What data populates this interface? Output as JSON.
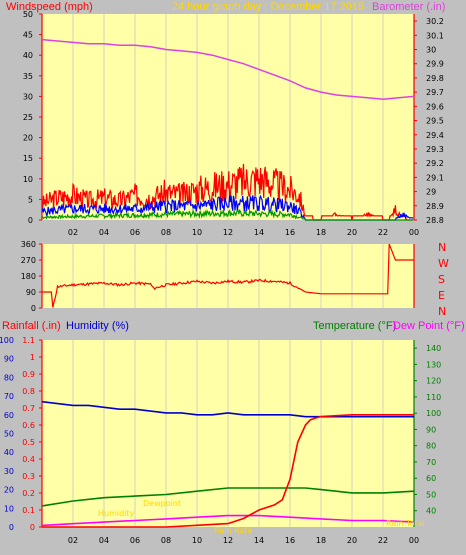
{
  "header": {
    "windspeed_label": "Windspeed (mph)",
    "title": "24 hour graph day : December 17 2015",
    "barometer_label": "Barometer (.in)"
  },
  "lower_header": {
    "rainfall_label": "Rainfall (.in)",
    "humidity_label": "Humidity (%)",
    "temperature_label": "Temperature (°F)",
    "dewpoint_label": "Dew Point (°F)"
  },
  "colors": {
    "background": "#c0c0c0",
    "panel": "#ffffa8",
    "grid": "#c8c8c8",
    "wind": "#ff0000",
    "gust_blue": "#0000ff",
    "gust_green": "#009900",
    "barometer": "#e040e0",
    "direction": "#ff0000",
    "humidity": "#0000cc",
    "temperature": "#008000",
    "dewpoint": "#ff00ff",
    "rain": "#ff0000",
    "title": "#ffd800"
  },
  "chart_data": [
    {
      "type": "line",
      "name": "wind-barometer",
      "x_ticks": [
        "02",
        "04",
        "06",
        "08",
        "10",
        "12",
        "14",
        "16",
        "18",
        "20",
        "22",
        "00"
      ],
      "y_left_ticks": [
        0,
        5,
        10,
        15,
        20,
        25,
        30,
        35,
        40,
        45,
        50
      ],
      "y_left_range": [
        0,
        50
      ],
      "y_right_ticks": [
        "28.8",
        "28.9",
        "29",
        "29.1",
        "29.2",
        "29.3",
        "29.4",
        "29.5",
        "29.6",
        "29.7",
        "29.8",
        "29.9",
        "30",
        "30.1",
        "30.2"
      ],
      "y_right_range": [
        28.8,
        30.25
      ],
      "barometer": {
        "x": [
          0,
          1,
          2,
          3,
          4,
          5,
          6,
          7,
          8,
          9,
          10,
          11,
          12,
          13,
          14,
          15,
          16,
          17,
          18,
          19,
          20,
          21,
          22,
          23,
          24
        ],
        "y": [
          30.07,
          30.06,
          30.05,
          30.04,
          30.04,
          30.03,
          30.03,
          30.02,
          30.0,
          29.99,
          29.98,
          29.96,
          29.93,
          29.9,
          29.86,
          29.82,
          29.78,
          29.73,
          29.7,
          29.68,
          29.67,
          29.66,
          29.65,
          29.66,
          29.67
        ]
      },
      "wind_red_envelope": {
        "x": [
          0,
          1,
          2,
          3,
          4,
          5,
          6,
          7,
          8,
          9,
          10,
          11,
          12,
          13,
          14,
          15,
          16,
          16.6,
          17,
          17.5,
          18,
          19,
          20,
          21,
          22,
          22.4,
          22.8,
          23,
          23.5,
          24
        ],
        "y": [
          6,
          8,
          9,
          7,
          8,
          7,
          9,
          8,
          10,
          9,
          11,
          12,
          13,
          14,
          15,
          13,
          11,
          9,
          1,
          0,
          0,
          2,
          0,
          2,
          0,
          0,
          4,
          2,
          0,
          0
        ]
      },
      "wind_blue_envelope": {
        "x": [
          0,
          2,
          4,
          6,
          8,
          10,
          12,
          14,
          16,
          16.6,
          17,
          22.8,
          23.2,
          24
        ],
        "y": [
          3,
          4,
          4,
          4,
          5,
          5,
          6,
          6,
          5,
          3,
          0,
          0,
          2,
          0
        ]
      },
      "wind_green_envelope": {
        "x": [
          0,
          4,
          8,
          12,
          16,
          16.6,
          17,
          24
        ],
        "y": [
          1,
          1.5,
          2,
          2.5,
          2,
          1,
          0,
          0
        ]
      }
    },
    {
      "type": "line",
      "name": "wind-direction",
      "x_ticks": [
        "02",
        "04",
        "06",
        "08",
        "10",
        "12",
        "14",
        "16",
        "18",
        "20",
        "22",
        "00"
      ],
      "y_ticks": [
        0,
        90,
        180,
        270,
        360
      ],
      "y_range": [
        0,
        360
      ],
      "right_labels": [
        "N",
        "W",
        "S",
        "E",
        "N"
      ],
      "direction": {
        "x": [
          0,
          0.3,
          0.6,
          0.7,
          1,
          2,
          3,
          4,
          5,
          6,
          7,
          7.2,
          7.6,
          8,
          9,
          10,
          11,
          12,
          13,
          14,
          15,
          16,
          16.6,
          17,
          18,
          19,
          20,
          21,
          22,
          22.3,
          22.4,
          22.8,
          23,
          24
        ],
        "y": [
          90,
          90,
          90,
          0,
          120,
          130,
          135,
          140,
          130,
          140,
          135,
          110,
          120,
          130,
          140,
          150,
          140,
          150,
          145,
          155,
          150,
          140,
          110,
          90,
          80,
          80,
          80,
          80,
          80,
          80,
          360,
          270,
          270,
          270
        ]
      }
    },
    {
      "type": "line",
      "name": "humidity-temp-rain",
      "x_ticks": [
        "02",
        "04",
        "06",
        "08",
        "10",
        "12",
        "14",
        "16",
        "18",
        "20",
        "22",
        "00"
      ],
      "humidity_ticks": [
        0,
        10,
        20,
        30,
        40,
        50,
        60,
        70,
        80,
        90,
        100
      ],
      "humidity_range": [
        0,
        100
      ],
      "rain_ticks": [
        "0",
        "0.1",
        "0.2",
        "0.3",
        "0.4",
        "0.5",
        "0.6",
        "0.7",
        "0.8",
        "0.9",
        "1",
        "1.1"
      ],
      "rain_range": [
        0,
        1.1
      ],
      "temp_ticks": [
        40,
        50,
        60,
        70,
        80,
        90,
        100,
        110,
        120,
        130,
        140
      ],
      "temp_range": [
        30,
        145
      ],
      "humidity": {
        "x": [
          0,
          1,
          2,
          3,
          4,
          5,
          6,
          7,
          8,
          9,
          10,
          11,
          12,
          13,
          14,
          15,
          16,
          17,
          18,
          19,
          20,
          21,
          22,
          23,
          24
        ],
        "y": [
          67,
          66,
          65,
          65,
          64,
          63,
          63,
          62,
          61,
          61,
          60,
          60,
          61,
          60,
          60,
          60,
          60,
          59,
          59,
          59,
          59,
          59,
          59,
          59,
          59
        ]
      },
      "temperature": {
        "x": [
          0,
          2,
          4,
          6,
          8,
          10,
          12,
          14,
          16,
          17,
          18,
          20,
          22,
          24
        ],
        "y": [
          43,
          46,
          48,
          49,
          50,
          52,
          54,
          54,
          54,
          54,
          53,
          51,
          51,
          52
        ]
      },
      "dewpoint": {
        "x": [
          0,
          2,
          4,
          6,
          8,
          10,
          12,
          13,
          14,
          16,
          18,
          20,
          22,
          24
        ],
        "y": [
          31,
          32,
          33,
          34,
          35,
          36,
          37,
          37,
          37,
          36,
          35,
          34,
          34,
          33
        ]
      },
      "rain": {
        "x": [
          0,
          8,
          10,
          12,
          13,
          14,
          15,
          15.5,
          16,
          16.5,
          17,
          17.3,
          17.6,
          18,
          20,
          22,
          24
        ],
        "y": [
          0,
          0,
          0.01,
          0.02,
          0.05,
          0.1,
          0.13,
          0.16,
          0.28,
          0.5,
          0.6,
          0.63,
          0.64,
          0.65,
          0.66,
          0.66,
          0.66
        ]
      },
      "annotations": [
        "Humidity",
        "Dewpoint",
        "Rain Rate",
        "Rain Total"
      ]
    }
  ]
}
